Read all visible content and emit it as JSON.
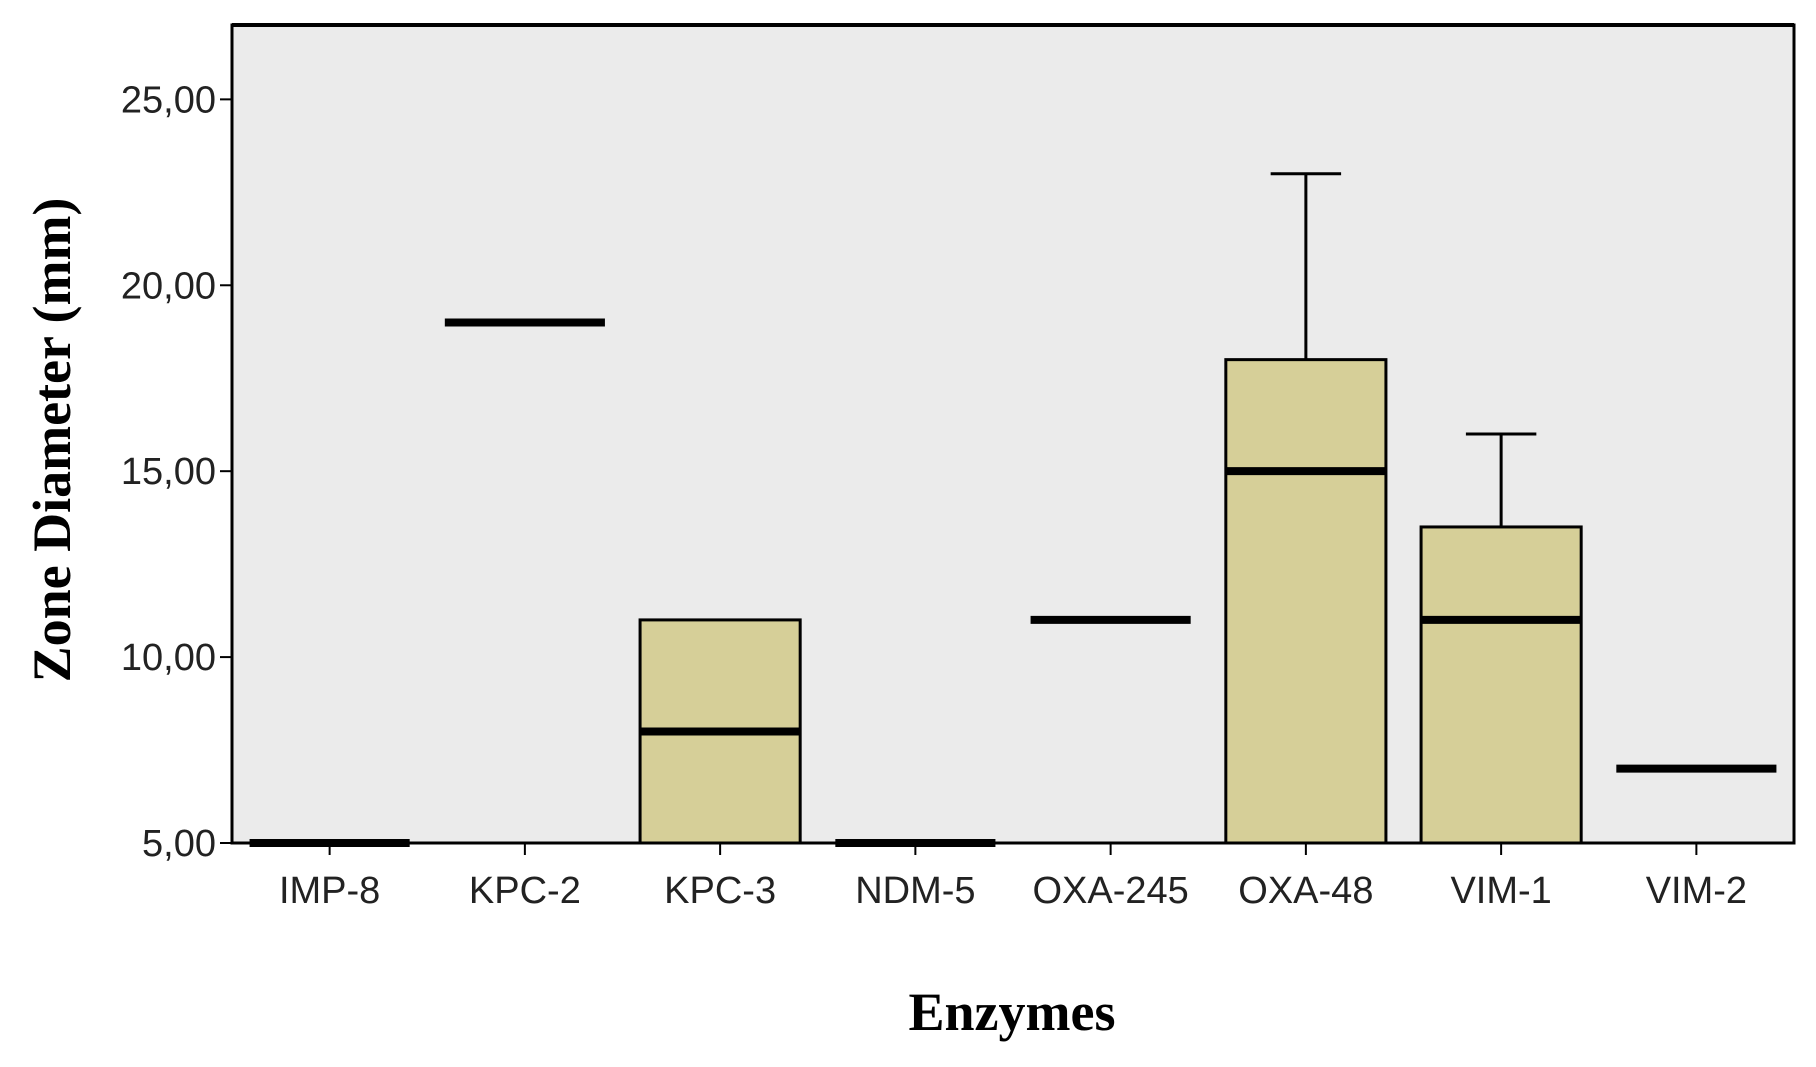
{
  "chart_data": {
    "type": "boxplot",
    "title": "",
    "xlabel": "Enzymes",
    "ylabel": "Zone Diameter (mm)",
    "ylim": [
      5,
      27
    ],
    "yticks": [
      5,
      10,
      15,
      20,
      25
    ],
    "ytick_labels": [
      "5,00",
      "10,00",
      "15,00",
      "20,00",
      "25,00"
    ],
    "grid": false,
    "legend": "none",
    "colors": {
      "box_fill": "#d6cf98",
      "plot_background": "#ebebeb",
      "line": "#000000"
    },
    "categories": [
      "IMP-8",
      "KPC-2",
      "KPC-3",
      "NDM-5",
      "OXA-245",
      "OXA-48",
      "VIM-1",
      "VIM-2"
    ],
    "boxes": [
      {
        "category": "IMP-8",
        "q1": 5,
        "median": 5,
        "q3": 5,
        "whisker_low": 5,
        "whisker_high": 5
      },
      {
        "category": "KPC-2",
        "q1": 19,
        "median": 19,
        "q3": 19,
        "whisker_low": 19,
        "whisker_high": 19
      },
      {
        "category": "KPC-3",
        "q1": 5,
        "median": 8,
        "q3": 11,
        "whisker_low": 5,
        "whisker_high": 11
      },
      {
        "category": "NDM-5",
        "q1": 5,
        "median": 5,
        "q3": 5,
        "whisker_low": 5,
        "whisker_high": 5
      },
      {
        "category": "OXA-245",
        "q1": 11,
        "median": 11,
        "q3": 11,
        "whisker_low": 11,
        "whisker_high": 11
      },
      {
        "category": "OXA-48",
        "q1": 5,
        "median": 15,
        "q3": 18,
        "whisker_low": 5,
        "whisker_high": 23
      },
      {
        "category": "VIM-1",
        "q1": 5,
        "median": 11,
        "q3": 13.5,
        "whisker_low": 5,
        "whisker_high": 16
      },
      {
        "category": "VIM-2",
        "q1": 7,
        "median": 7,
        "q3": 7,
        "whisker_low": 7,
        "whisker_high": 7
      }
    ]
  }
}
